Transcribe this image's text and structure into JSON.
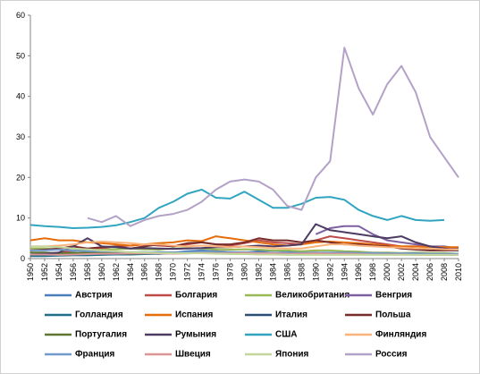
{
  "chart_data": {
    "type": "line",
    "x": [
      1950,
      1952,
      1954,
      1956,
      1958,
      1960,
      1962,
      1964,
      1966,
      1968,
      1970,
      1972,
      1974,
      1976,
      1978,
      1980,
      1982,
      1984,
      1986,
      1988,
      1990,
      1992,
      1994,
      1996,
      1998,
      2000,
      2002,
      2004,
      2006,
      2008,
      2010
    ],
    "xlim": [
      1950,
      2010
    ],
    "xticks": [
      1950,
      1952,
      1954,
      1956,
      1958,
      1960,
      1962,
      1964,
      1966,
      1968,
      1970,
      1972,
      1974,
      1976,
      1978,
      1980,
      1982,
      1984,
      1986,
      1988,
      1990,
      1992,
      1994,
      1996,
      1998,
      2000,
      2002,
      2004,
      2006,
      2008,
      2010
    ],
    "ylim": [
      0,
      60
    ],
    "yticks": [
      0,
      10,
      20,
      30,
      40,
      50,
      60
    ],
    "series": [
      {
        "name": "Австрия",
        "color": "#4a7ebb",
        "values": [
          1.5,
          1.2,
          1,
          1,
          1.2,
          1.3,
          1.5,
          1.4,
          1.5,
          1.6,
          1.5,
          1.8,
          2,
          1.8,
          1.6,
          1.5,
          1.8,
          2,
          1.8,
          1.5,
          1.5,
          1.3,
          1.2,
          1.1,
          1,
          1,
          1,
          1,
          0.9,
          0.9,
          1
        ]
      },
      {
        "name": "Болгария",
        "color": "#be4b48",
        "values": [
          1,
          1.2,
          1.5,
          2,
          2.2,
          2.5,
          3,
          3.2,
          3.5,
          3.2,
          3,
          3.5,
          4,
          3.5,
          3.2,
          3.8,
          4.5,
          4,
          3.8,
          3.5,
          4.5,
          5.5,
          5,
          4.5,
          4,
          3.5,
          3,
          3,
          3,
          2.8,
          2.5
        ]
      },
      {
        "name": "Великобритания",
        "color": "#98b954",
        "values": [
          2.5,
          2.5,
          2.2,
          2,
          2,
          2.2,
          2.3,
          2.5,
          2.3,
          2.2,
          2.5,
          2.6,
          2.5,
          2.3,
          2.2,
          2.3,
          2.2,
          2,
          2,
          1.8,
          2,
          2,
          1.8,
          1.7,
          1.5,
          1.5,
          1.4,
          1.5,
          1.4,
          1.4,
          1.2
        ]
      },
      {
        "name": "Венгрия",
        "color": "#7d60a0",
        "values": [
          null,
          null,
          null,
          null,
          null,
          null,
          null,
          null,
          null,
          null,
          null,
          null,
          null,
          null,
          null,
          null,
          null,
          null,
          null,
          null,
          6,
          7.5,
          8,
          8,
          6,
          4.5,
          4,
          3.5,
          3,
          3,
          2.5
        ]
      },
      {
        "name": "Голландия",
        "color": "#1f6f8b",
        "values": [
          0.6,
          0.6,
          0.7,
          0.8,
          0.8,
          0.9,
          1,
          1,
          1.1,
          1.2,
          1.3,
          1.3,
          1.4,
          1.4,
          1.3,
          1.4,
          1.3,
          1.2,
          1.2,
          1.2,
          1.3,
          1.3,
          1.2,
          1.1,
          1.1,
          1,
          1,
          1,
          1,
          0.9,
          0.9
        ]
      },
      {
        "name": "Испания",
        "color": "#e46c0a",
        "values": [
          4.5,
          5,
          4.5,
          4.5,
          4,
          3.8,
          3.5,
          3.2,
          3.5,
          3.8,
          4,
          4.5,
          4.3,
          5.5,
          5,
          4.5,
          4,
          3.5,
          3.2,
          3.5,
          4,
          4.2,
          4,
          3.8,
          3.5,
          3.2,
          3,
          3,
          2.8,
          2.8,
          2.8
        ]
      },
      {
        "name": "Италия",
        "color": "#2c4d75",
        "values": [
          1,
          1,
          1.2,
          1.5,
          1.3,
          1.2,
          1.3,
          1.5,
          1.4,
          1.2,
          1.3,
          1.4,
          1.5,
          1.4,
          1.3,
          1.5,
          1.6,
          1.4,
          1.3,
          1.2,
          1.3,
          1.3,
          1.2,
          1.1,
          1.2,
          1.2,
          1.1,
          1,
          1,
          1,
          1
        ]
      },
      {
        "name": "Польша",
        "color": "#772c2a",
        "values": [
          2,
          2.2,
          2.5,
          3,
          2.5,
          2.8,
          3,
          2.5,
          3,
          3.5,
          3,
          3.8,
          4,
          3.5,
          3.5,
          4,
          5,
          4.5,
          4.5,
          4,
          4.5,
          4,
          3.5,
          3.5,
          3.2,
          3,
          2.5,
          2.2,
          2,
          2,
          2
        ]
      },
      {
        "name": "Португалия",
        "color": "#5f7530",
        "values": [
          1.5,
          1.5,
          1.3,
          1.4,
          1.5,
          1.4,
          1.3,
          1.2,
          1.3,
          1.4,
          1.5,
          1.5,
          1.6,
          1.8,
          1.6,
          1.5,
          1.5,
          1.4,
          1.3,
          1.2,
          1.3,
          1.4,
          1.5,
          1.4,
          1.3,
          1.3,
          1.2,
          1.2,
          1.1,
          1.1,
          1
        ]
      },
      {
        "name": "Румыния",
        "color": "#4d3b62",
        "values": [
          1,
          1.2,
          1.5,
          3,
          5,
          3,
          2.8,
          2.5,
          2.6,
          2.5,
          2.4,
          2.5,
          2.6,
          2.8,
          2.8,
          3,
          3.2,
          3,
          3.2,
          3.5,
          8.5,
          7,
          6.5,
          6,
          5.5,
          5,
          5.5,
          4,
          3,
          2.5,
          2
        ]
      },
      {
        "name": "США",
        "color": "#31a5c0",
        "values": [
          8.3,
          8,
          7.8,
          7.5,
          7.6,
          7.8,
          8.2,
          9,
          10,
          12.5,
          14,
          16,
          17,
          15,
          14.8,
          16.5,
          14.5,
          12.5,
          12.5,
          13.5,
          15,
          15.2,
          14.5,
          12,
          10.5,
          9.5,
          10.5,
          9.5,
          9.3,
          9.5,
          null
        ]
      },
      {
        "name": "Финляндия",
        "color": "#f9b37a",
        "values": [
          3,
          3,
          3.2,
          3.5,
          4,
          4.2,
          4,
          3.8,
          3.5,
          3.5,
          3.2,
          3,
          3.2,
          3,
          2.8,
          3,
          2.8,
          2.6,
          2.5,
          2.5,
          3,
          3.5,
          3.5,
          3.2,
          3,
          2.8,
          2.7,
          2.5,
          2.5,
          2.3,
          2.2
        ]
      },
      {
        "name": "Франция",
        "color": "#729aca",
        "values": [
          2,
          2,
          2.2,
          2,
          1.8,
          1.8,
          1.7,
          1.6,
          1.6,
          1.5,
          1.5,
          1.6,
          1.7,
          1.7,
          1.6,
          1.6,
          1.5,
          1.5,
          1.4,
          1.4,
          1.5,
          1.5,
          1.5,
          1.4,
          1.4,
          1.3,
          1.3,
          1.3,
          1.2,
          1.2,
          1.2
        ]
      },
      {
        "name": "Швеция",
        "color": "#d99694",
        "values": [
          1,
          1,
          0.9,
          1,
          1.1,
          1.2,
          1.2,
          1.3,
          1.3,
          1.3,
          1.2,
          1.3,
          1.4,
          1.3,
          1.3,
          1.4,
          1.3,
          1.3,
          1.2,
          1.2,
          1.3,
          1.2,
          1.2,
          1.1,
          1,
          1,
          1,
          0.9,
          0.9,
          0.9,
          0.9
        ]
      },
      {
        "name": "Япония",
        "color": "#c3d69b",
        "values": [
          3,
          3,
          2.8,
          2.5,
          2.3,
          2,
          1.8,
          1.6,
          1.5,
          1.4,
          1.3,
          1.3,
          1.3,
          1.2,
          1.1,
          1.1,
          1,
          1,
          0.9,
          0.9,
          0.9,
          0.9,
          0.9,
          0.9,
          0.9,
          0.9,
          0.9,
          0.9,
          0.9,
          0.9,
          0.9
        ]
      },
      {
        "name": "Россия",
        "color": "#b3a2c7",
        "values": [
          null,
          null,
          null,
          null,
          10,
          9,
          10.5,
          8,
          9.5,
          10.5,
          11,
          12,
          14,
          17,
          19,
          19.5,
          19,
          17,
          13,
          12,
          20,
          24,
          52,
          42,
          35.5,
          43,
          47.5,
          41,
          30,
          25,
          20
        ]
      }
    ]
  }
}
